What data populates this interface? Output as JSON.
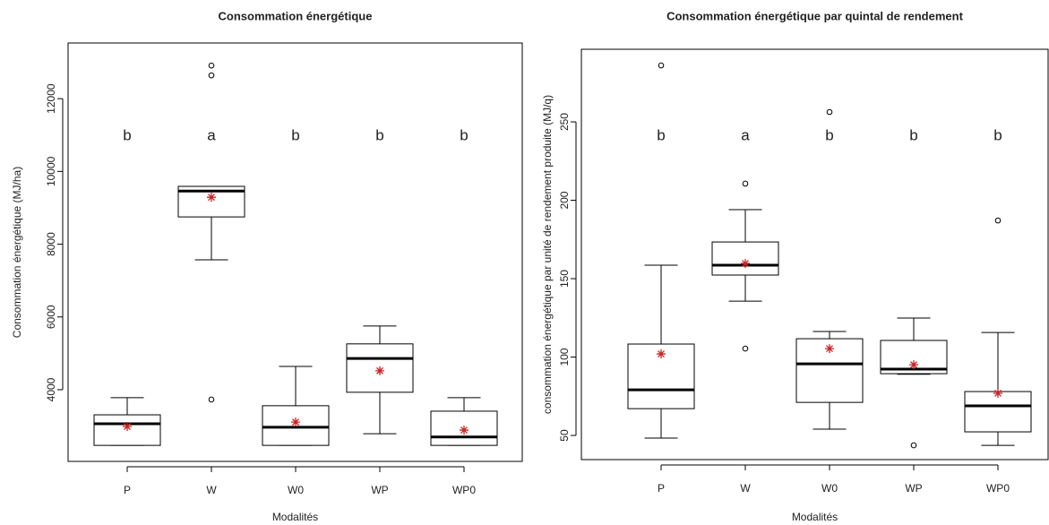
{
  "chart_data": [
    {
      "type": "boxplot",
      "title": "Consommation énergétique",
      "xlabel": "Modalités",
      "ylabel": "Consommation énergétique (MJ/ha)",
      "categories": [
        "P",
        "W",
        "W0",
        "WP",
        "WP0"
      ],
      "group_letters": [
        "b",
        "a",
        "b",
        "b",
        "b"
      ],
      "boxes": [
        {
          "min": 2470,
          "q1": 2470,
          "median": 3065,
          "q3": 3310,
          "max": 3780,
          "mean": 2990,
          "outliers": []
        },
        {
          "min": 7570,
          "q1": 8750,
          "median": 9460,
          "q3": 9590,
          "max": 9590,
          "mean": 9290,
          "outliers": [
            12910,
            12640,
            3730
          ]
        },
        {
          "min": 2470,
          "q1": 2470,
          "median": 2970,
          "q3": 3560,
          "max": 4640,
          "mean": 3110,
          "outliers": []
        },
        {
          "min": 2790,
          "q1": 3930,
          "median": 4860,
          "q3": 5260,
          "max": 5750,
          "mean": 4520,
          "outliers": []
        },
        {
          "min": 2470,
          "q1": 2470,
          "median": 2700,
          "q3": 3410,
          "max": 3780,
          "mean": 2890,
          "outliers": []
        }
      ],
      "box_color": "#ffffff",
      "line_color": "#000000",
      "mean_color": "#cc2222",
      "ylim": [
        2030,
        13530
      ],
      "yticks": [
        4000,
        6000,
        8000,
        10000,
        12000
      ]
    },
    {
      "type": "boxplot",
      "title": "Consommation énergétique par quintal de rendement",
      "xlabel": "Modalités",
      "ylabel": "consommation énergétique par unité de rendement produite (MJ/q)",
      "categories": [
        "P",
        "W",
        "W0",
        "WP",
        "WP0"
      ],
      "group_letters": [
        "b",
        "a",
        "b",
        "b",
        "b"
      ],
      "boxes": [
        {
          "min": 48.3,
          "q1": 67.1,
          "median": 79.1,
          "q3": 108.3,
          "max": 158.6,
          "mean": 102,
          "outliers": [
            286
          ]
        },
        {
          "min": 135.7,
          "q1": 152.3,
          "median": 158.6,
          "q3": 173.4,
          "max": 194,
          "mean": 159.7,
          "outliers": [
            210.6,
            105.4
          ]
        },
        {
          "min": 54,
          "q1": 71.1,
          "median": 95.7,
          "q3": 111.7,
          "max": 116.3,
          "mean": 105.4,
          "outliers": [
            256.3
          ]
        },
        {
          "min": 89,
          "q1": 89.4,
          "median": 92.3,
          "q3": 110.6,
          "max": 124.9,
          "mean": 95.1,
          "outliers": [
            43.7
          ]
        },
        {
          "min": 43.7,
          "q1": 52.3,
          "median": 68.9,
          "q3": 78,
          "max": 115.7,
          "mean": 76.9,
          "outliers": [
            187.1
          ]
        }
      ],
      "box_color": "#ffffff",
      "line_color": "#000000",
      "mean_color": "#cc2222",
      "ylim": [
        34.6,
        296.3
      ],
      "yticks": [
        50,
        100,
        150,
        200,
        250
      ]
    }
  ]
}
